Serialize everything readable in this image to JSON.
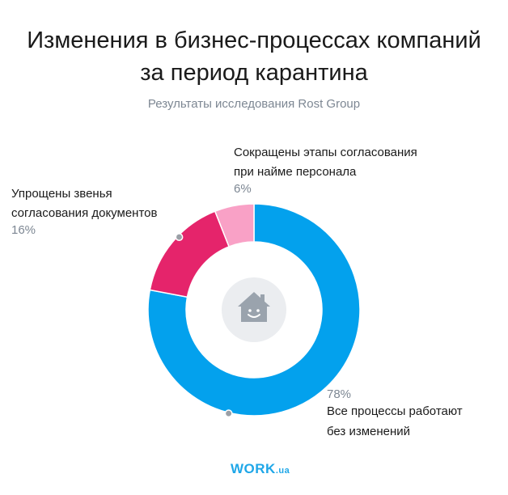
{
  "title": {
    "line1": "Изменения в бизнес-процессах компаний",
    "line2": "за период карантина"
  },
  "subtitle": "Результаты исследования Rost Group",
  "brand": {
    "main": "WORK",
    "suffix": ".ua"
  },
  "center_icon": "smiling-house-icon",
  "colors": {
    "blue": "#03a1ed",
    "magenta": "#e5246b",
    "pink": "#f9a1c6",
    "hole": "#ebedf0",
    "icon": "#9aa3ad",
    "label_gray": "#7d8793"
  },
  "chart_data": {
    "type": "pie",
    "variant": "donut",
    "slices": [
      {
        "label_lines": [
          "Все процессы работают",
          "без изменений"
        ],
        "value": 78,
        "value_label": "78%",
        "color": "#03a1ed"
      },
      {
        "label_lines": [
          "Упрощены звенья",
          "согласования документов"
        ],
        "value": 16,
        "value_label": "16%",
        "color": "#e5246b"
      },
      {
        "label_lines": [
          "Сокращены этапы согласования",
          "при найме персонала"
        ],
        "value": 6,
        "value_label": "6%",
        "color": "#f9a1c6"
      }
    ]
  }
}
